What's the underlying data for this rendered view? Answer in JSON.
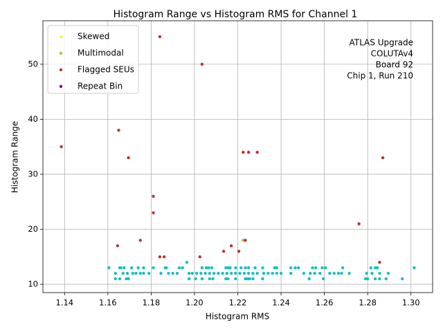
{
  "chart_data": {
    "type": "scatter",
    "title": "Histogram Range vs Histogram RMS for Channel 1",
    "x_label": "Histogram RMS",
    "y_label": "Histogram Range",
    "annotation": [
      "ATLAS Upgrade",
      "COLUTAv4",
      "Board 92",
      "Chip 1, Run 210"
    ],
    "xlim": [
      1.13,
      1.31
    ],
    "ylim": [
      8.5,
      57.9
    ],
    "xticks": [
      1.14,
      1.16,
      1.18,
      {
        "value": 1.2,
        "label": "1.20"
      },
      1.22,
      1.24,
      1.26,
      1.28,
      {
        "value": 1.3,
        "label": "1.30"
      }
    ],
    "yticks": [
      10,
      20,
      30,
      40,
      50
    ],
    "grid": true,
    "legend": "upper left",
    "series": [
      {
        "color": "#17bfbf",
        "x": [
          1.1605,
          1.1655,
          1.166,
          1.1675,
          1.171,
          1.174,
          1.1765,
          1.181,
          1.1865,
          1.187,
          1.193,
          1.1945,
          1.2035,
          1.2055,
          1.2065,
          1.208,
          1.2145,
          1.2155,
          1.2165,
          1.219,
          1.2215,
          1.2235,
          1.225,
          1.228,
          1.2315,
          1.237,
          1.238,
          1.2445,
          1.2465,
          1.248,
          1.2545,
          1.256,
          1.259,
          1.2605,
          1.2685,
          1.2815,
          1.2835,
          1.2845,
          1.3015,
          1.1635,
          1.167,
          1.169,
          1.1715,
          1.173,
          1.175,
          1.1765,
          1.179,
          1.1845,
          1.188,
          1.19,
          1.192,
          1.1975,
          1.199,
          1.201,
          1.203,
          1.205,
          1.207,
          1.209,
          1.211,
          1.213,
          1.215,
          1.217,
          1.219,
          1.221,
          1.223,
          1.225,
          1.227,
          1.229,
          1.232,
          1.234,
          1.236,
          1.238,
          1.24,
          1.2445,
          1.2505,
          1.2535,
          1.2555,
          1.258,
          1.2625,
          1.2645,
          1.2665,
          1.268,
          1.2715,
          1.2795,
          1.282,
          1.2855,
          1.2895,
          1.1635,
          1.1655,
          1.1685,
          1.1695,
          1.1975,
          1.2005,
          1.2035,
          1.207,
          1.2085,
          1.2145,
          1.2155,
          1.219,
          1.2235,
          1.2245,
          1.2255,
          1.227,
          1.2315,
          1.253,
          1.2595,
          1.279,
          1.28,
          1.2835,
          1.2855,
          1.2885,
          1.296,
          1.1965
        ],
        "values": [
          13,
          13,
          13,
          13,
          13,
          13,
          13,
          13,
          13,
          13,
          13,
          13,
          13,
          13,
          13,
          13,
          13,
          13,
          13,
          13,
          13,
          13,
          13,
          13,
          13,
          13,
          13,
          13,
          13,
          13,
          13,
          13,
          13,
          13,
          13,
          13,
          13,
          13,
          13,
          12,
          12,
          12,
          12,
          12,
          12,
          12,
          12,
          12,
          12,
          12,
          12,
          12,
          12,
          12,
          12,
          12,
          12,
          12,
          12,
          12,
          12,
          12,
          12,
          12,
          12,
          12,
          12,
          12,
          12,
          12,
          12,
          12,
          12,
          12,
          12,
          12,
          12,
          12,
          12,
          12,
          12,
          12,
          12,
          12,
          12,
          12,
          12,
          11,
          11,
          11,
          11,
          11,
          11,
          11,
          11,
          11,
          11,
          11,
          11,
          11,
          11,
          11,
          11,
          11,
          11,
          11,
          11,
          11,
          11,
          11,
          11,
          11,
          14
        ]
      },
      {
        "name": "Skewed",
        "color": "#ffff00",
        "x": [],
        "values": []
      },
      {
        "name": "Multimodal",
        "color": "#9acd32",
        "x": [
          1.2225
        ],
        "values": [
          18
        ]
      },
      {
        "name": "Flagged SEUs",
        "color": "#c0302f",
        "x": [
          1.1385,
          1.165,
          1.1695,
          1.1645,
          1.175,
          1.181,
          1.181,
          1.184,
          1.184,
          1.186,
          1.2035,
          1.2025,
          1.2135,
          1.217,
          1.2205,
          1.2225,
          1.225,
          1.229,
          1.2235,
          1.276,
          1.2855,
          1.287
        ],
        "values": [
          35,
          38,
          33,
          17,
          18,
          26,
          23,
          55,
          15,
          15,
          50,
          15,
          16,
          17,
          16,
          34,
          34,
          34,
          18,
          21,
          14,
          33
        ]
      },
      {
        "name": "Repeat Bin",
        "color": "#800080",
        "x": [],
        "values": []
      }
    ]
  }
}
